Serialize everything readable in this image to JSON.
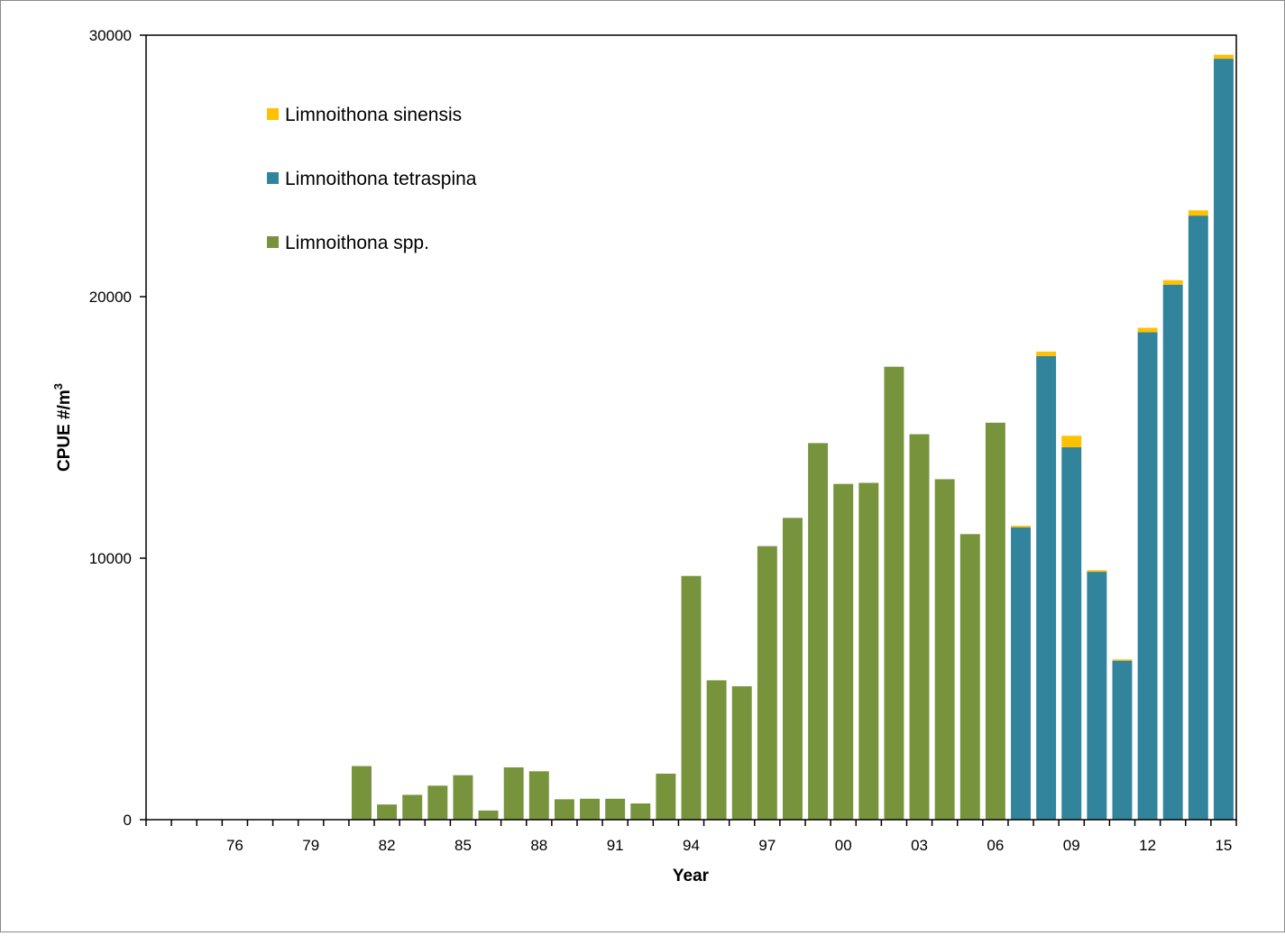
{
  "chart_data": {
    "type": "bar",
    "stacked": true,
    "xlabel": "Year",
    "ylabel": "CPUE  #/m",
    "ylabel_superscript": "3",
    "ylim": [
      0,
      30000
    ],
    "yticks": [
      0,
      10000,
      20000,
      30000
    ],
    "ytick_labels": [
      "0",
      "10000",
      "20000",
      "30000"
    ],
    "x": [
      1973,
      1974,
      1975,
      1976,
      1977,
      1978,
      1979,
      1980,
      1981,
      1982,
      1983,
      1984,
      1985,
      1986,
      1987,
      1988,
      1989,
      1990,
      1991,
      1992,
      1993,
      1994,
      1995,
      1996,
      1997,
      1998,
      1999,
      2000,
      2001,
      2002,
      2003,
      2004,
      2005,
      2006,
      2007,
      2008,
      2009,
      2010,
      2011,
      2012,
      2013,
      2014,
      2015
    ],
    "xtick_labels": [
      "",
      "",
      "",
      "76",
      "",
      "",
      "79",
      "",
      "",
      "82",
      "",
      "",
      "85",
      "",
      "",
      "88",
      "",
      "",
      "91",
      "",
      "",
      "94",
      "",
      "",
      "97",
      "",
      "",
      "00",
      "",
      "",
      "03",
      "",
      "",
      "06",
      "",
      "",
      "09",
      "",
      "",
      "12",
      "",
      "",
      "15"
    ],
    "legend_position": "top-left",
    "series": [
      {
        "name": "Limnoithona spp.",
        "color": "#77933c",
        "values": [
          0,
          0,
          0,
          0,
          0,
          0,
          0,
          0,
          2050,
          580,
          950,
          1300,
          1700,
          350,
          2000,
          1850,
          780,
          800,
          800,
          620,
          1760,
          9320,
          5330,
          5100,
          10460,
          11540,
          14400,
          12840,
          12880,
          17320,
          14740,
          13020,
          10920,
          15180,
          0,
          0,
          0,
          0,
          0,
          0,
          0,
          0,
          0
        ]
      },
      {
        "name": "Limnoithona tetraspina",
        "color": "#31849b",
        "values": [
          0,
          0,
          0,
          0,
          0,
          0,
          0,
          0,
          0,
          0,
          0,
          0,
          0,
          0,
          0,
          0,
          0,
          0,
          0,
          0,
          0,
          0,
          0,
          0,
          0,
          0,
          0,
          0,
          0,
          0,
          0,
          0,
          0,
          0,
          11180,
          17730,
          14240,
          9480,
          6080,
          18640,
          20460,
          23100,
          29100
        ]
      },
      {
        "name": "Limnoithona sinensis",
        "color": "#ffc000",
        "values": [
          0,
          0,
          0,
          0,
          0,
          0,
          0,
          0,
          0,
          0,
          0,
          0,
          0,
          0,
          0,
          0,
          0,
          0,
          0,
          0,
          0,
          0,
          0,
          0,
          0,
          0,
          0,
          0,
          0,
          0,
          0,
          0,
          0,
          0,
          60,
          170,
          440,
          60,
          50,
          170,
          170,
          200,
          150
        ]
      }
    ]
  }
}
